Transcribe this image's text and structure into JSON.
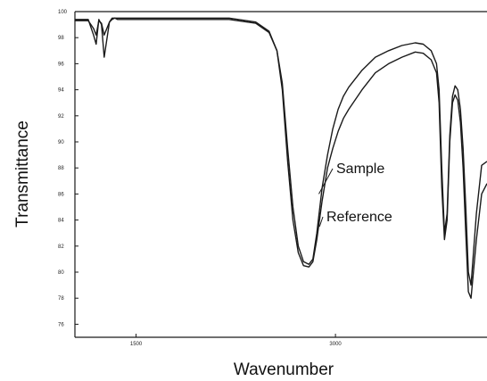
{
  "chart_data": {
    "type": "line",
    "title": "",
    "xlabel": "Wavenumber",
    "ylabel": "Transmittance",
    "xlim": [
      1040,
      4140
    ],
    "ylim": [
      75,
      100
    ],
    "grid": false,
    "legend": "inline",
    "colors": {
      "line": "#1a1a1a",
      "text": "#111111"
    },
    "y_ticks": [
      {
        "value": 100,
        "label": "100"
      },
      {
        "value": 98,
        "label": "98"
      },
      {
        "value": 96,
        "label": "96"
      },
      {
        "value": 94,
        "label": "94"
      },
      {
        "value": 92,
        "label": "92"
      },
      {
        "value": 90,
        "label": "90"
      },
      {
        "value": 88,
        "label": "88"
      },
      {
        "value": 86,
        "label": "86"
      },
      {
        "value": 84,
        "label": "84"
      },
      {
        "value": 82,
        "label": "82"
      },
      {
        "value": 80,
        "label": "80"
      },
      {
        "value": 78,
        "label": "78"
      },
      {
        "value": 76,
        "label": "76"
      }
    ],
    "x_ticks": [
      {
        "value": 1500,
        "label": "1500"
      },
      {
        "value": 3000,
        "label": "3000"
      }
    ],
    "series": [
      {
        "name": "Sample",
        "x": [
          1040,
          1140,
          1180,
          1200,
          1220,
          1240,
          1260,
          1300,
          1320,
          1340,
          1360,
          1400,
          1500,
          1800,
          2200,
          2400,
          2500,
          2560,
          2600,
          2640,
          2680,
          2720,
          2760,
          2800,
          2830,
          2860,
          2900,
          2940,
          2980,
          3020,
          3060,
          3100,
          3200,
          3300,
          3400,
          3500,
          3600,
          3660,
          3720,
          3760,
          3780,
          3800,
          3820,
          3840,
          3860,
          3880,
          3900,
          3920,
          3940,
          3960,
          3980,
          4000,
          4020,
          4060,
          4100,
          4140
        ],
        "y": [
          99.3,
          99.3,
          98.7,
          98.2,
          99.3,
          99.1,
          98.2,
          99.2,
          99.4,
          99.5,
          99.4,
          99.4,
          99.4,
          99.4,
          99.4,
          99.1,
          98.4,
          97.0,
          94.5,
          89.5,
          85.0,
          82.0,
          80.8,
          80.6,
          81.0,
          83.0,
          86.5,
          89.0,
          91.0,
          92.5,
          93.5,
          94.2,
          95.5,
          96.5,
          97.0,
          97.4,
          97.6,
          97.5,
          97.0,
          96.0,
          94.0,
          88.0,
          83.0,
          84.5,
          90.5,
          93.5,
          94.3,
          94.0,
          92.5,
          89.5,
          85.0,
          80.0,
          79.0,
          84.5,
          88.2,
          88.5
        ]
      },
      {
        "name": "Reference",
        "x": [
          1040,
          1140,
          1180,
          1200,
          1220,
          1240,
          1260,
          1300,
          1320,
          1340,
          1360,
          1400,
          1500,
          1800,
          2200,
          2400,
          2500,
          2560,
          2600,
          2640,
          2680,
          2720,
          2760,
          2800,
          2830,
          2860,
          2900,
          2940,
          2980,
          3020,
          3060,
          3100,
          3200,
          3300,
          3400,
          3500,
          3600,
          3660,
          3720,
          3760,
          3780,
          3800,
          3820,
          3840,
          3860,
          3880,
          3900,
          3920,
          3940,
          3960,
          3980,
          4000,
          4020,
          4060,
          4100,
          4140
        ],
        "y": [
          99.4,
          99.4,
          98.2,
          97.5,
          99.4,
          99.0,
          96.5,
          99.2,
          99.5,
          99.5,
          99.5,
          99.5,
          99.5,
          99.5,
          99.5,
          99.2,
          98.5,
          97.0,
          94.0,
          88.5,
          84.0,
          81.5,
          80.5,
          80.4,
          80.8,
          82.5,
          85.5,
          88.0,
          89.5,
          90.8,
          91.8,
          92.5,
          94.0,
          95.3,
          96.0,
          96.5,
          96.9,
          96.8,
          96.3,
          95.3,
          93.0,
          86.5,
          82.5,
          84.0,
          90.0,
          93.0,
          93.6,
          93.2,
          91.5,
          88.0,
          83.0,
          78.5,
          78.0,
          82.5,
          86.0,
          86.8
        ]
      }
    ],
    "annotations": [
      {
        "series": "Sample",
        "text": "Sample",
        "x": 2875,
        "y": 86.0
      },
      {
        "series": "Reference",
        "text": "Reference",
        "x": 2880,
        "y": 83.5
      }
    ]
  }
}
